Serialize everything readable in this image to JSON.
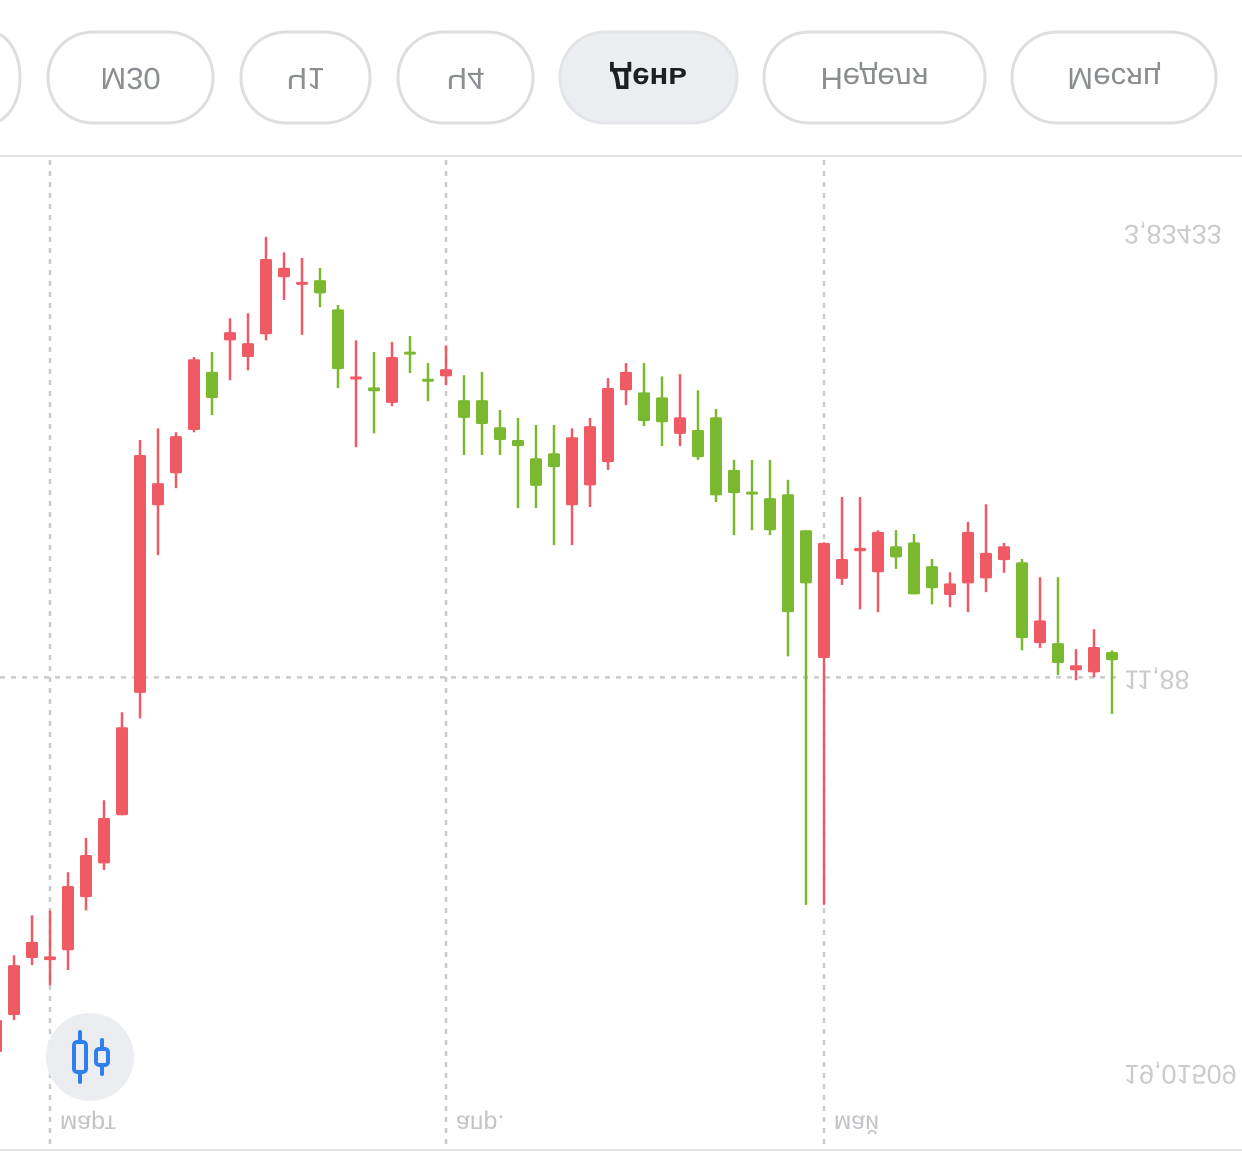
{
  "tabs": [
    "М30",
    "Ч1",
    "Ч4",
    "День",
    "Неделя",
    "Месяц"
  ],
  "active_tab": 3,
  "chart_data": {
    "type": "candlestick",
    "invert_y": true,
    "up_color": "#f05a64",
    "down_color": "#7ab92f",
    "ylim": [
      2.44,
      20.42
    ],
    "yticks": [
      {
        "value": 3.83433,
        "label": "3,83433"
      },
      {
        "value": 19.01509,
        "label": "19,01509"
      }
    ],
    "current_price": {
      "value": 11.88,
      "label": "11,88"
    },
    "categories": [
      null,
      null,
      null,
      "март",
      null,
      null,
      null,
      null,
      null,
      null,
      null,
      null,
      null,
      null,
      null,
      null,
      null,
      null,
      null,
      null,
      null,
      null,
      null,
      null,
      null,
      "апр.",
      null,
      null,
      null,
      null,
      null,
      null,
      null,
      null,
      null,
      null,
      null,
      null,
      null,
      null,
      null,
      null,
      null,
      null,
      null,
      null,
      "май",
      null,
      null,
      null,
      null,
      null,
      null,
      null,
      null,
      null,
      null,
      null,
      null,
      null,
      null,
      null,
      null
    ],
    "open": [
      18.07,
      17.08,
      16.66,
      16.92,
      15.65,
      15.09,
      14.42,
      12.78,
      7.86,
      8.37,
      7.52,
      6.13,
      6.83,
      5.64,
      5.84,
      4.32,
      4.48,
      4.76,
      4.94,
      6.31,
      6.47,
      6.71,
      6.09,
      6.06,
      6.54,
      6.31,
      7.19,
      7.3,
      7.59,
      7.7,
      8.42,
      8.08,
      7.54,
      7.34,
      6.65,
      6.36,
      7.25,
      7.27,
      7.18,
      7.9,
      8.59,
      8.55,
      8.6,
      9.22,
      10.7,
      10.18,
      9.45,
      9.74,
      9.54,
      9.25,
      9.71,
      10.38,
      10.27,
      10.18,
      9.25,
      9.63,
      9.51,
      11.17,
      10.85,
      11.62,
      11.66,
      11.33,
      11.57
    ],
    "high": [
      18.71,
      18.07,
      17.08,
      17.44,
      17.17,
      16.09,
      15.36,
      14.37,
      12.62,
      9.67,
      8.46,
      7.45,
      7.14,
      6.51,
      6.33,
      5.79,
      5.06,
      5.69,
      5.19,
      6.65,
      7.72,
      7.47,
      6.98,
      6.38,
      6.89,
      6.6,
      7.86,
      7.86,
      7.86,
      8.82,
      8.82,
      9.49,
      9.49,
      8.8,
      8.13,
      6.96,
      7.34,
      7.7,
      7.7,
      7.95,
      8.71,
      9.31,
      9.22,
      9.31,
      11.5,
      15.99,
      15.99,
      10.21,
      10.65,
      10.7,
      9.92,
      10.38,
      10.56,
      10.61,
      10.7,
      10.34,
      9.99,
      11.39,
      11.35,
      11.84,
      11.93,
      11.88,
      12.54
    ],
    "low": [
      17.89,
      16.9,
      16.18,
      16.09,
      15.4,
      14.78,
      14.1,
      12.51,
      7.59,
      7.38,
      7.45,
      6.09,
      6.0,
      5.39,
      5.3,
      3.92,
      4.2,
      4.3,
      4.48,
      5.15,
      5.79,
      6.0,
      5.82,
      5.71,
      6.2,
      5.88,
      6.42,
      6.36,
      7.05,
      7.19,
      7.32,
      7.32,
      7.38,
      7.19,
      6.47,
      6.2,
      6.2,
      6.44,
      6.4,
      6.69,
      7.03,
      7.95,
      7.95,
      7.95,
      8.31,
      9.22,
      9.44,
      8.62,
      8.62,
      9.22,
      9.22,
      9.29,
      9.74,
      9.98,
      9.07,
      8.75,
      9.45,
      9.74,
      10.07,
      10.07,
      11.37,
      11.01,
      11.39
    ],
    "close": [
      18.65,
      17.98,
      16.95,
      16.99,
      16.81,
      15.85,
      15.24,
      14.37,
      12.16,
      8.77,
      8.19,
      7.41,
      6.36,
      5.79,
      6.09,
      5.68,
      4.65,
      4.81,
      4.7,
      5.23,
      6.51,
      6.64,
      6.92,
      6.02,
      6.51,
      6.44,
      6.87,
      6.87,
      7.36,
      7.59,
      7.92,
      7.83,
      8.77,
      8.41,
      7.99,
      6.69,
      6.73,
      6.82,
      7.48,
      7.41,
      7.18,
      8.13,
      8.55,
      8.64,
      8.57,
      9.22,
      11.53,
      10.1,
      9.6,
      9.98,
      9.51,
      9.44,
      9.87,
      10.39,
      10.18,
      10.09,
      9.76,
      9.8,
      11.26,
      11.26,
      11.75,
      11.79,
      11.42
    ]
  }
}
